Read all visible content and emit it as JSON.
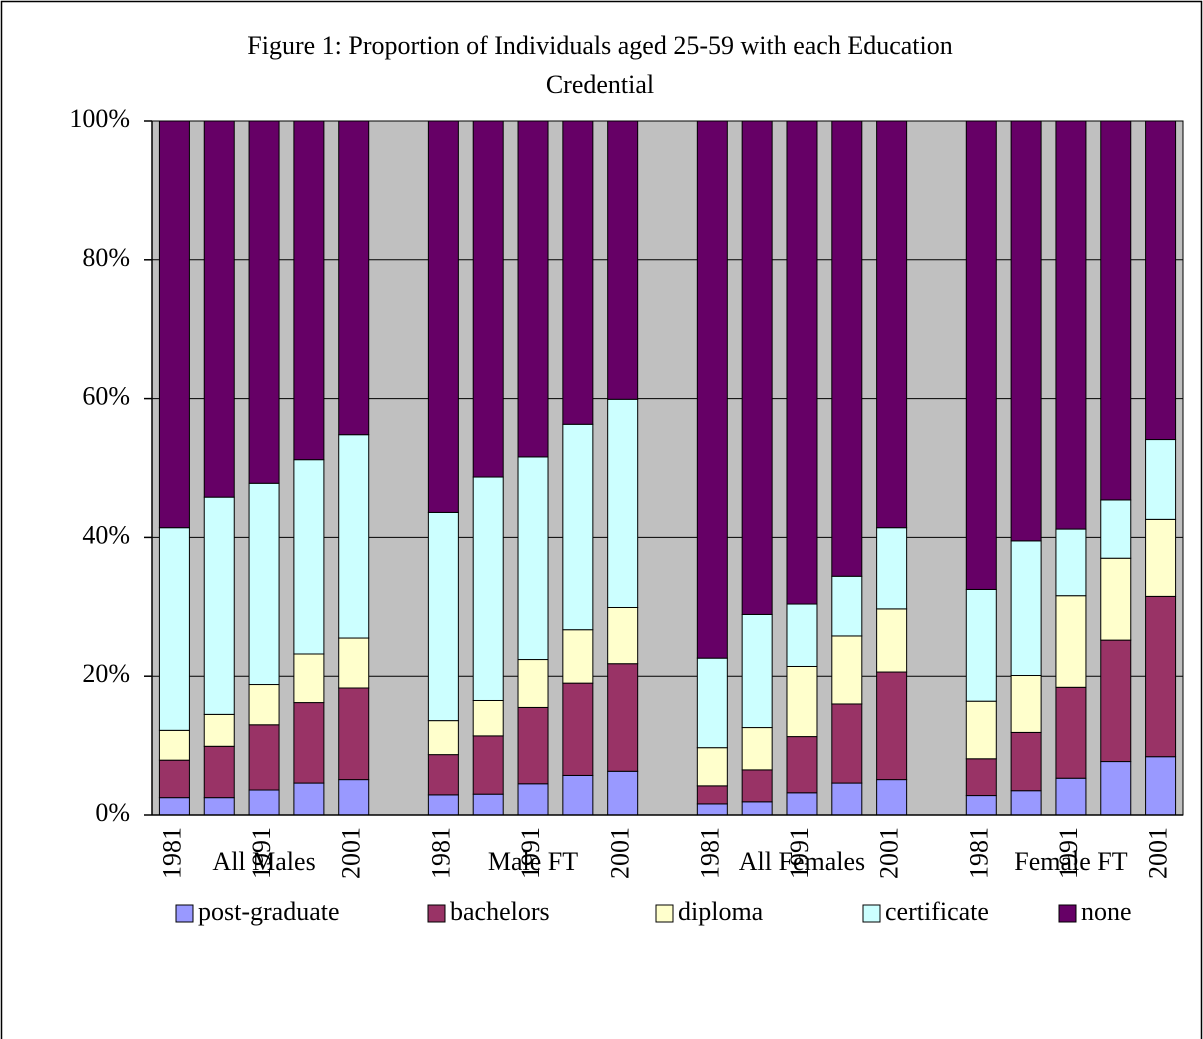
{
  "chart_data": {
    "type": "stacked_bar",
    "title": "Figure 1: Proportion of Individuals aged 25-59 with each Education",
    "subtitle": "Credential",
    "categories": [
      "1981",
      null,
      "1991",
      null,
      "2001",
      null,
      "1981",
      null,
      "1991",
      null,
      "2001",
      null,
      "1981",
      null,
      "1991",
      null,
      "2001",
      null,
      "1981",
      null,
      "1991",
      null,
      "2001"
    ],
    "groups": [
      "All Males",
      "Male FT",
      "All Females",
      "Female FT"
    ],
    "series": [
      {
        "name": "post-graduate",
        "color": "#9999ff",
        "values": [
          2.5,
          2.5,
          3.6,
          4.6,
          5.1,
          null,
          2.9,
          3.0,
          4.5,
          5.7,
          6.3,
          null,
          1.6,
          1.9,
          3.2,
          4.6,
          5.1,
          null,
          2.8,
          3.5,
          5.3,
          7.7,
          8.4
        ]
      },
      {
        "name": "bachelors",
        "color": "#993366",
        "values": [
          5.4,
          7.4,
          9.4,
          11.6,
          13.2,
          null,
          5.8,
          8.4,
          11.0,
          13.3,
          15.5,
          null,
          2.6,
          4.6,
          8.1,
          11.4,
          15.5,
          null,
          5.3,
          8.4,
          13.1,
          17.5,
          23.1
        ]
      },
      {
        "name": "diploma",
        "color": "#ffffcc",
        "values": [
          4.3,
          4.6,
          5.8,
          7.0,
          7.2,
          null,
          4.9,
          5.1,
          6.9,
          7.7,
          8.1,
          null,
          5.5,
          6.1,
          10.1,
          9.8,
          9.1,
          null,
          8.3,
          8.2,
          13.2,
          11.8,
          11.1
        ]
      },
      {
        "name": "certificate",
        "color": "#ccffff",
        "values": [
          29.2,
          31.3,
          29.0,
          28.0,
          29.3,
          null,
          30.0,
          32.2,
          29.2,
          29.6,
          30.0,
          null,
          12.9,
          16.3,
          9.0,
          8.6,
          11.7,
          null,
          16.1,
          19.4,
          9.6,
          8.4,
          11.5
        ]
      },
      {
        "name": "none",
        "color": "#660066",
        "values": [
          58.6,
          54.2,
          52.2,
          48.8,
          45.2,
          null,
          56.4,
          51.3,
          48.4,
          43.7,
          40.1,
          null,
          77.4,
          71.1,
          69.6,
          65.6,
          58.6,
          null,
          67.5,
          60.5,
          58.8,
          54.6,
          45.9
        ]
      }
    ],
    "ylim": [
      0,
      100
    ],
    "yticks": [
      {
        "value": 0,
        "label": "0%"
      },
      {
        "value": 20,
        "label": "20%"
      },
      {
        "value": 40,
        "label": "40%"
      },
      {
        "value": 60,
        "label": "60%"
      },
      {
        "value": 80,
        "label": "80%"
      },
      {
        "value": 100,
        "label": "100%"
      }
    ],
    "grid": true,
    "plot_background": "#c0c0c0",
    "legend": "bottom"
  }
}
